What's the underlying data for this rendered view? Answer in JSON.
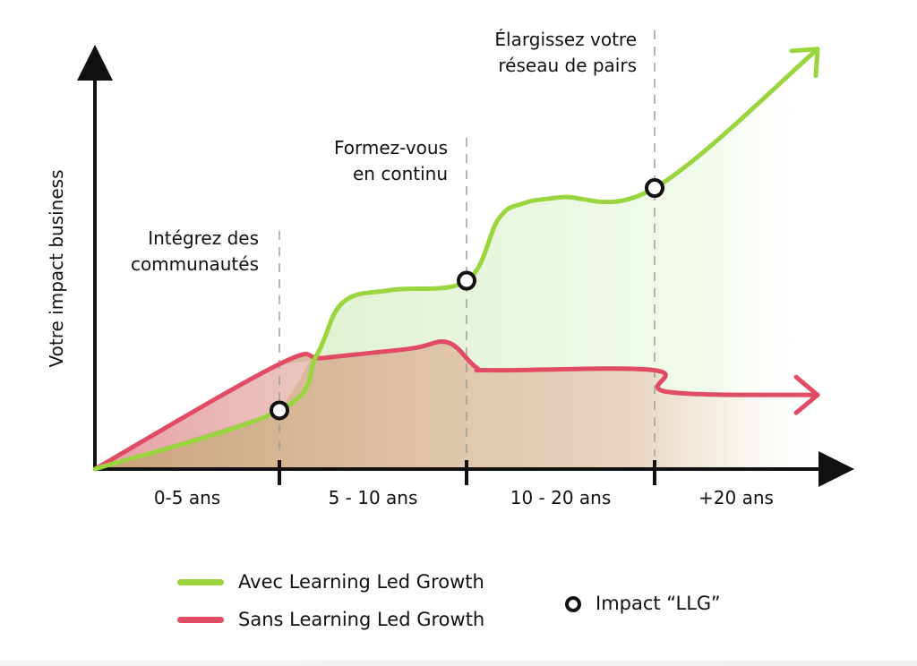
{
  "chart_data": {
    "type": "area",
    "ylabel": "Votre impact business",
    "xlabel": "",
    "x_categories": [
      "0-5 ans",
      "5 - 10 ans",
      "10 - 20 ans",
      "+20 ans"
    ],
    "x": [
      0,
      5,
      10,
      20,
      30
    ],
    "milestones": [
      {
        "x": 5,
        "label_lines": [
          "Intégrez des",
          "communautés"
        ]
      },
      {
        "x": 10,
        "label_lines": [
          "Formez-vous",
          "en continu"
        ]
      },
      {
        "x": 20,
        "label_lines": [
          "Élargissez votre",
          "réseau de pairs"
        ]
      }
    ],
    "series": [
      {
        "name": "Avec Learning Led Growth",
        "color": "#9ad43f",
        "points": [
          [
            0,
            0
          ],
          [
            5,
            0.19
          ],
          [
            6,
            0.37
          ],
          [
            6.7,
            0.54
          ],
          [
            8,
            0.58
          ],
          [
            10,
            0.61
          ],
          [
            11.7,
            0.81
          ],
          [
            13,
            0.86
          ],
          [
            15,
            0.88
          ],
          [
            20,
            0.91
          ],
          [
            30,
            1.36
          ]
        ],
        "arrow": true,
        "impact_markers": [
          [
            5,
            0.19
          ],
          [
            10,
            0.61
          ],
          [
            20,
            0.91
          ]
        ]
      },
      {
        "name": "Sans Learning Led Growth",
        "color": "#e14b64",
        "points": [
          [
            0,
            0
          ],
          [
            5,
            0.34
          ],
          [
            6.2,
            0.36
          ],
          [
            8.5,
            0.39
          ],
          [
            9.5,
            0.41
          ],
          [
            10.5,
            0.33
          ],
          [
            11.5,
            0.32
          ],
          [
            20,
            0.32
          ],
          [
            20.8,
            0.25
          ],
          [
            30,
            0.24
          ]
        ],
        "arrow": true
      }
    ],
    "grid": false,
    "legend_position": "bottom",
    "marker_legend": "Impact “LLG”",
    "colors": {
      "axis": "#111111",
      "green": "#9ad43f",
      "red": "#e14b64",
      "fill_brown": "#d4a27d",
      "fill_pink": "#f1b3bf",
      "fill_green": "#d8f0c0"
    }
  },
  "legend": {
    "with_label": "Avec Learning Led Growth",
    "without_label": "Sans Learning Led Growth",
    "marker_label": "Impact “LLG”"
  }
}
